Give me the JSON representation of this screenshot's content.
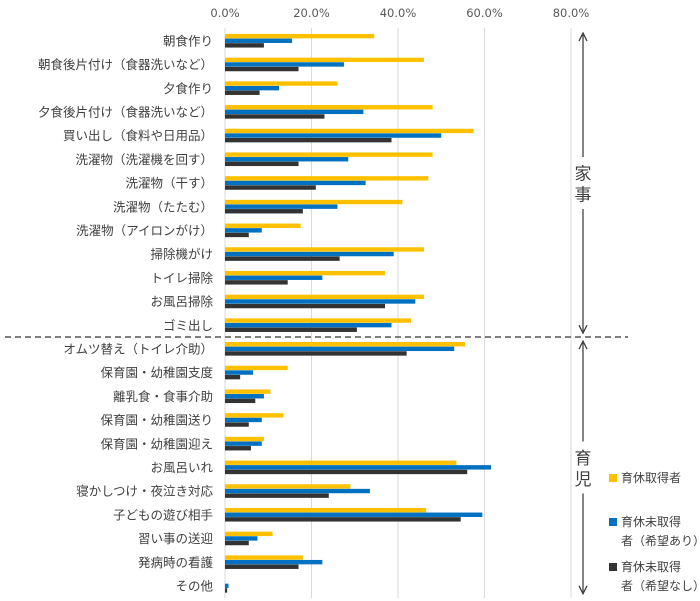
{
  "chart_data": {
    "type": "bar",
    "orientation": "horizontal",
    "categories": [
      "朝食作り",
      "朝食後片付け（食器洗いなど）",
      "夕食作り",
      "夕食後片付け（食器洗いなど）",
      "買い出し（食料や日用品）",
      "洗濯物（洗濯機を回す）",
      "洗濯物（干す）",
      "洗濯物（たたむ）",
      "洗濯物（アイロンがけ）",
      "掃除機がけ",
      "トイレ掃除",
      "お風呂掃除",
      "ゴミ出し",
      "オムツ替え（トイレ介助）",
      "保育園・幼稚園支度",
      "離乳食・食事介助",
      "保育園・幼稚園送り",
      "保育園・幼稚園迎え",
      "お風呂いれ",
      "寝かしつけ・夜泣き対応",
      "子どもの遊び相手",
      "習い事の送迎",
      "発病時の看護",
      "その他"
    ],
    "series": [
      {
        "name": "育休取得者",
        "color": "#FFC000",
        "values": [
          34.5,
          46.0,
          26.0,
          48.0,
          57.5,
          48.0,
          47.0,
          41.0,
          17.5,
          46.0,
          37.0,
          46.0,
          43.0,
          55.5,
          14.5,
          10.5,
          13.5,
          9.0,
          53.5,
          29.0,
          46.5,
          11.0,
          18.0,
          0.0
        ]
      },
      {
        "name": "育休未取得者（希望あり）",
        "color": "#0070C0",
        "values": [
          15.5,
          27.5,
          12.5,
          32.0,
          50.0,
          28.5,
          32.5,
          26.0,
          8.5,
          39.0,
          22.5,
          44.0,
          38.5,
          53.0,
          6.5,
          9.0,
          8.5,
          8.5,
          61.5,
          33.5,
          59.5,
          7.5,
          22.5,
          0.8
        ]
      },
      {
        "name": "育休未取得者（希望なし）",
        "color": "#333333",
        "values": [
          9.0,
          17.0,
          8.0,
          23.0,
          38.5,
          17.0,
          21.0,
          18.0,
          5.5,
          26.5,
          14.5,
          37.0,
          30.5,
          42.0,
          3.5,
          7.0,
          5.5,
          6.0,
          56.0,
          24.0,
          54.5,
          5.5,
          17.0,
          0.5
        ]
      }
    ],
    "xlim": [
      0,
      80
    ],
    "xticks": [
      "0.0%",
      "20.0%",
      "40.0%",
      "60.0%",
      "80.0%"
    ],
    "grid": true,
    "legend_position": "right",
    "groups": [
      {
        "label": "家事",
        "first": 0,
        "last": 12
      },
      {
        "label": "育児",
        "first": 13,
        "last": 23
      }
    ]
  }
}
